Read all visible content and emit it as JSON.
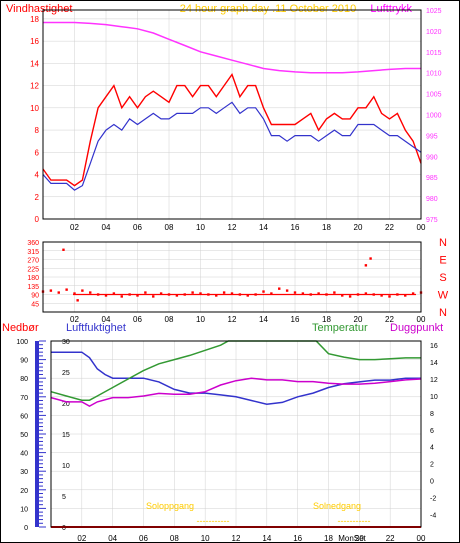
{
  "colors": {
    "wind": "#ff0000",
    "wind_avg": "#3333cc",
    "pressure": "#ff33ff",
    "direction": "#ff0000",
    "humidity": "#3333cc",
    "temperature": "#339933",
    "dewpoint": "#cc00cc",
    "precip": "#ff0000",
    "sun": "#ffcc00",
    "grid": "#d0d0d0"
  },
  "chart_data": [
    {
      "type": "line",
      "title": "24 hour graph day .11 October 2010",
      "left_label": "Vindhastighet",
      "right_label": "Lufttrykk",
      "x_ticks": [
        "02",
        "04",
        "06",
        "08",
        "10",
        "12",
        "14",
        "16",
        "18",
        "20",
        "22",
        "00"
      ],
      "y_ticks_left": [
        0,
        2,
        4,
        6,
        8,
        10,
        12,
        14,
        16,
        18
      ],
      "y_ticks_right": [
        975,
        980,
        985,
        990,
        995,
        1000,
        1005,
        1010,
        1015,
        1020,
        1025
      ],
      "ylim_left": [
        0,
        18.8
      ],
      "ylim_right": [
        975,
        1025
      ],
      "series": [
        {
          "name": "Vindhastighet",
          "x": [
            0,
            0.5,
            1,
            1.5,
            2,
            2.5,
            3,
            3.5,
            4,
            4.5,
            5,
            5.5,
            6,
            6.5,
            7,
            7.5,
            8,
            8.5,
            9,
            9.5,
            10,
            10.5,
            11,
            11.5,
            12,
            12.5,
            13,
            13.5,
            14,
            14.5,
            15,
            15.5,
            16,
            16.5,
            17,
            17.5,
            18,
            18.5,
            19,
            19.5,
            20,
            20.5,
            21,
            21.5,
            22,
            22.5,
            23,
            23.5,
            24
          ],
          "values": [
            4.5,
            3.5,
            3.5,
            3.5,
            3,
            3.5,
            7,
            10,
            11,
            12,
            10,
            11,
            10,
            11,
            11.5,
            11,
            10.5,
            12,
            12,
            11,
            12,
            12,
            11,
            12,
            13,
            11,
            12,
            12,
            10,
            8.5,
            8.5,
            8.5,
            8.5,
            9,
            9.5,
            8,
            9,
            9.5,
            9,
            9,
            10,
            10,
            11,
            9.5,
            9,
            9.5,
            8,
            7,
            5
          ]
        },
        {
          "name": "Vindhastighet middel",
          "x": [
            0,
            0.5,
            1,
            1.5,
            2,
            2.5,
            3,
            3.5,
            4,
            4.5,
            5,
            5.5,
            6,
            6.5,
            7,
            7.5,
            8,
            8.5,
            9,
            9.5,
            10,
            10.5,
            11,
            11.5,
            12,
            12.5,
            13,
            13.5,
            14,
            14.5,
            15,
            15.5,
            16,
            16.5,
            17,
            17.5,
            18,
            18.5,
            19,
            19.5,
            20,
            20.5,
            21,
            21.5,
            22,
            22.5,
            23,
            23.5,
            24
          ],
          "values": [
            4,
            3.2,
            3.2,
            3.2,
            2.6,
            3,
            5,
            7,
            8,
            8.5,
            8,
            9,
            8.5,
            9,
            9.5,
            9,
            9,
            9.5,
            9.5,
            9.5,
            10,
            10,
            9.5,
            10,
            10.5,
            9.5,
            10,
            10,
            9,
            7.5,
            7.5,
            7,
            7.5,
            7.5,
            7.5,
            7,
            7.5,
            8,
            7.5,
            7.5,
            8.5,
            8.5,
            8.5,
            8,
            7.5,
            7.5,
            7,
            6.5,
            6
          ]
        },
        {
          "name": "Lufttrykk",
          "axis": "right",
          "x": [
            0,
            1,
            2,
            3,
            4,
            5,
            6,
            7,
            8,
            9,
            10,
            11,
            12,
            13,
            14,
            15,
            16,
            17,
            18,
            19,
            20,
            21,
            22,
            23,
            24
          ],
          "values": [
            1022,
            1022,
            1022,
            1021.8,
            1021.5,
            1021,
            1020.5,
            1019.5,
            1018,
            1016.5,
            1015,
            1014,
            1013,
            1012,
            1011,
            1010.5,
            1010.2,
            1010,
            1010,
            1010,
            1010.2,
            1010.5,
            1010.8,
            1011,
            1011
          ]
        }
      ]
    },
    {
      "type": "scatter",
      "y_ticks": [
        0,
        45,
        90,
        135,
        180,
        225,
        270,
        315,
        360
      ],
      "compass": [
        "N",
        "W",
        "S",
        "E",
        "N"
      ],
      "ylim": [
        0,
        360
      ],
      "series": [
        {
          "name": "Vindretning",
          "x": [
            0,
            0.5,
            1,
            1.5,
            2,
            2.5,
            3,
            3.5,
            4,
            4.5,
            5,
            5.5,
            6,
            6.5,
            7,
            7.5,
            8,
            8.5,
            9,
            9.5,
            10,
            10.5,
            11,
            11.5,
            12,
            12.5,
            13,
            13.5,
            14,
            14.5,
            15,
            15.5,
            16,
            16.5,
            17,
            17.5,
            18,
            18.5,
            19,
            19.5,
            20,
            20.5,
            21,
            21.5,
            22,
            22.5,
            23,
            23.5,
            24,
            1.3,
            2.2,
            20.5,
            20.8
          ],
          "values": [
            105,
            110,
            100,
            115,
            95,
            110,
            100,
            90,
            85,
            95,
            80,
            90,
            85,
            100,
            80,
            95,
            90,
            85,
            90,
            100,
            95,
            90,
            85,
            100,
            95,
            90,
            85,
            90,
            105,
            95,
            120,
            110,
            100,
            95,
            90,
            95,
            90,
            100,
            85,
            80,
            90,
            95,
            90,
            85,
            80,
            90,
            85,
            95,
            100,
            320,
            60,
            240,
            275
          ]
        }
      ]
    },
    {
      "type": "line",
      "labels": {
        "precip": "Nedbør",
        "humidity": "Luftfuktighet",
        "temperature": "Temperatur",
        "dewpoint": "Duggpunkt"
      },
      "y_ticks_precip": [
        0,
        10,
        20,
        30,
        40,
        50,
        60,
        70,
        80,
        90,
        100
      ],
      "y_ticks_hum": [
        0,
        5,
        10,
        15,
        20,
        25,
        30
      ],
      "y_ticks_temp": [
        -4,
        -2,
        0,
        2,
        4,
        6,
        8,
        10,
        12,
        14,
        16
      ],
      "ylim_precip": [
        0,
        100
      ],
      "ylim_temp": [
        -5.5,
        16.5
      ],
      "sunrise": "Soloppgang",
      "sunset": "Solnedgang",
      "sun_bar_1": "-----------",
      "sun_bar_2": "-----------",
      "bottom_mark": "MonSet",
      "series": [
        {
          "name": "Luftfuktighet",
          "axis": "precip",
          "x": [
            0,
            1,
            2,
            2.5,
            3,
            3.5,
            4,
            5,
            6,
            7,
            8,
            9,
            10,
            11,
            12,
            13,
            14,
            15,
            16,
            17,
            18,
            19,
            20,
            21,
            22,
            23,
            24
          ],
          "values": [
            94,
            94,
            94,
            91,
            85,
            82,
            80,
            80,
            80,
            78,
            74,
            72,
            72,
            71,
            70,
            68,
            66,
            67,
            70,
            72,
            75,
            77,
            78,
            79,
            79,
            80,
            80
          ]
        },
        {
          "name": "Temperatur",
          "axis": "temp",
          "x": [
            0,
            1,
            2,
            2.5,
            3,
            4,
            5,
            6,
            7,
            8,
            9,
            10,
            11,
            11.5,
            17.2,
            18,
            19,
            20,
            21,
            22,
            23,
            24
          ],
          "values": [
            10.5,
            10,
            9.5,
            9.5,
            10,
            11,
            12,
            13,
            13.8,
            14.3,
            14.8,
            15.4,
            16,
            16.5,
            16.5,
            15,
            14.6,
            14.3,
            14.3,
            14.4,
            14.5,
            14.5
          ]
        },
        {
          "name": "Duggpunkt",
          "axis": "temp",
          "x": [
            0,
            1,
            2,
            2.5,
            3,
            4,
            5,
            6,
            7,
            8,
            9,
            10,
            11,
            12,
            13,
            14,
            15,
            16,
            17,
            18,
            19,
            20,
            21,
            22,
            23,
            24
          ],
          "values": [
            9.8,
            9.3,
            9.3,
            8.8,
            9.3,
            9.8,
            9.8,
            10,
            10.3,
            10.2,
            10.2,
            10.5,
            11.3,
            11.8,
            12.1,
            11.9,
            11.9,
            11.7,
            11.7,
            11.5,
            11.4,
            11.4,
            11.5,
            11.7,
            11.9,
            12
          ]
        },
        {
          "name": "Nedbør",
          "axis": "precip",
          "x": [
            0,
            24
          ],
          "values": [
            0,
            0
          ]
        }
      ]
    }
  ]
}
